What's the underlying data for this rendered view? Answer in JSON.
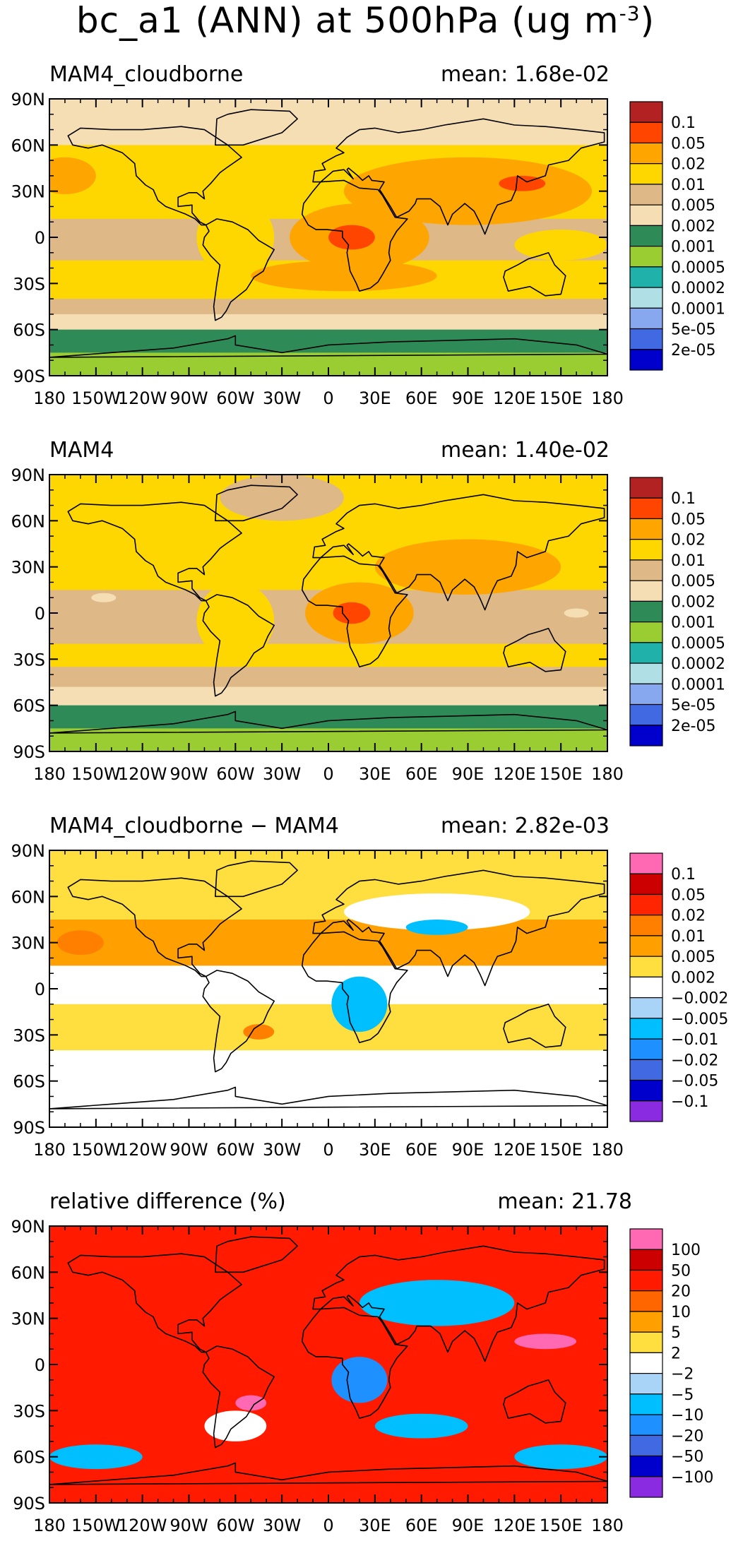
{
  "title": {
    "text": "bc_a1 (ANN) at 500hPa (ug m",
    "sup": "-3",
    "close": ")"
  },
  "chart_data": [
    {
      "type": "heatmap",
      "title": "MAM4_cloudborne",
      "mean": "mean: 1.68e-02",
      "yticks": [
        "90N",
        "60N",
        "30N",
        "0",
        "30S",
        "60S",
        "90S"
      ],
      "xticks": [
        "180",
        "150W",
        "120W",
        "90W",
        "60W",
        "30W",
        "0",
        "30E",
        "60E",
        "90E",
        "120E",
        "150E",
        "180"
      ],
      "xlim": [
        -180,
        180
      ],
      "ylim": [
        -90,
        90
      ],
      "levels": [
        "0.1",
        "0.05",
        "0.02",
        "0.01",
        "0.005",
        "0.002",
        "0.001",
        "0.0005",
        "0.0002",
        "0.0001",
        "5e-05",
        "2e-05"
      ],
      "colors": [
        "#b22222",
        "#ff4500",
        "#ffa500",
        "#ffd700",
        "#deb887",
        "#f5deb3",
        "#2e8b57",
        "#9acd32",
        "#20b2aa",
        "#b0e0e6",
        "#87a8ef",
        "#4169e1",
        "#0000cd"
      ],
      "bands": [
        {
          "lat": [
            60,
            90
          ],
          "c": 5
        },
        {
          "lat": [
            40,
            60
          ],
          "c": 3
        },
        {
          "lat": [
            12,
            40
          ],
          "c": 3
        },
        {
          "lat": [
            -15,
            12
          ],
          "c": 4
        },
        {
          "lat": [
            -30,
            -15
          ],
          "c": 3
        },
        {
          "lat": [
            -40,
            -30
          ],
          "c": 3
        },
        {
          "lat": [
            -50,
            -40
          ],
          "c": 4
        },
        {
          "lat": [
            -60,
            -50
          ],
          "c": 5
        },
        {
          "lat": [
            -75,
            -60
          ],
          "c": 6
        },
        {
          "lat": [
            -90,
            -75
          ],
          "c": 7
        }
      ],
      "blobs": [
        {
          "lon": 90,
          "lat": 30,
          "rx": 80,
          "ry": 22,
          "c": 2
        },
        {
          "lon": 20,
          "lat": 0,
          "rx": 45,
          "ry": 22,
          "c": 2
        },
        {
          "lon": 10,
          "lat": -25,
          "rx": 60,
          "ry": 10,
          "c": 2
        },
        {
          "lon": -170,
          "lat": 40,
          "rx": 20,
          "ry": 12,
          "c": 2
        },
        {
          "lon": 125,
          "lat": 35,
          "rx": 15,
          "ry": 5,
          "c": 1
        },
        {
          "lon": 15,
          "lat": 0,
          "rx": 15,
          "ry": 8,
          "c": 1
        },
        {
          "lon": -60,
          "lat": 0,
          "rx": 25,
          "ry": 25,
          "c": 3
        },
        {
          "lon": -100,
          "lat": 25,
          "rx": 30,
          "ry": 8,
          "c": 3
        },
        {
          "lon": 150,
          "lat": -5,
          "rx": 30,
          "ry": 10,
          "c": 3
        }
      ]
    },
    {
      "type": "heatmap",
      "title": "MAM4",
      "mean": "mean: 1.40e-02",
      "yticks": [
        "90N",
        "60N",
        "30N",
        "0",
        "30S",
        "60S",
        "90S"
      ],
      "xticks": [
        "180",
        "150W",
        "120W",
        "90W",
        "60W",
        "30W",
        "0",
        "30E",
        "60E",
        "90E",
        "120E",
        "150E",
        "180"
      ],
      "xlim": [
        -180,
        180
      ],
      "ylim": [
        -90,
        90
      ],
      "levels": [
        "0.1",
        "0.05",
        "0.02",
        "0.01",
        "0.005",
        "0.002",
        "0.001",
        "0.0005",
        "0.0002",
        "0.0001",
        "5e-05",
        "2e-05"
      ],
      "colors": [
        "#b22222",
        "#ff4500",
        "#ffa500",
        "#ffd700",
        "#deb887",
        "#f5deb3",
        "#2e8b57",
        "#9acd32",
        "#20b2aa",
        "#b0e0e6",
        "#87a8ef",
        "#4169e1",
        "#0000cd"
      ],
      "bands": [
        {
          "lat": [
            60,
            90
          ],
          "c": 3
        },
        {
          "lat": [
            40,
            60
          ],
          "c": 3
        },
        {
          "lat": [
            15,
            40
          ],
          "c": 3
        },
        {
          "lat": [
            -20,
            15
          ],
          "c": 4
        },
        {
          "lat": [
            -35,
            -20
          ],
          "c": 3
        },
        {
          "lat": [
            -48,
            -35
          ],
          "c": 4
        },
        {
          "lat": [
            -60,
            -48
          ],
          "c": 5
        },
        {
          "lat": [
            -75,
            -60
          ],
          "c": 6
        },
        {
          "lat": [
            -90,
            -75
          ],
          "c": 7
        }
      ],
      "blobs": [
        {
          "lon": -30,
          "lat": 75,
          "rx": 40,
          "ry": 15,
          "c": 4
        },
        {
          "lon": 90,
          "lat": 30,
          "rx": 60,
          "ry": 18,
          "c": 2
        },
        {
          "lon": 20,
          "lat": 0,
          "rx": 35,
          "ry": 20,
          "c": 2
        },
        {
          "lon": 15,
          "lat": 0,
          "rx": 12,
          "ry": 7,
          "c": 1
        },
        {
          "lon": -60,
          "lat": -5,
          "rx": 25,
          "ry": 25,
          "c": 3
        },
        {
          "lon": -145,
          "lat": 10,
          "rx": 8,
          "ry": 3,
          "c": 5
        },
        {
          "lon": 160,
          "lat": 0,
          "rx": 8,
          "ry": 3,
          "c": 5
        }
      ]
    },
    {
      "type": "heatmap",
      "title": "MAM4_cloudborne − MAM4",
      "mean": "mean: 2.82e-03",
      "yticks": [
        "90N",
        "60N",
        "30N",
        "0",
        "30S",
        "60S",
        "90S"
      ],
      "xticks": [
        "180",
        "150W",
        "120W",
        "90W",
        "60W",
        "30W",
        "0",
        "30E",
        "60E",
        "90E",
        "120E",
        "150E",
        "180"
      ],
      "xlim": [
        -180,
        180
      ],
      "ylim": [
        -90,
        90
      ],
      "levels": [
        "0.1",
        "0.05",
        "0.02",
        "0.01",
        "0.005",
        "0.002",
        "−0.002",
        "−0.005",
        "−0.01",
        "−0.02",
        "−0.05",
        "−0.1"
      ],
      "colors": [
        "#ff69b4",
        "#cd0000",
        "#ff2500",
        "#ff7f00",
        "#ffa000",
        "#ffdf3f",
        "#ffffff",
        "#aad4f7",
        "#00bfff",
        "#1e90ff",
        "#4169e1",
        "#0000cd",
        "#8a2be2"
      ],
      "bands": [
        {
          "lat": [
            45,
            90
          ],
          "c": 5
        },
        {
          "lat": [
            15,
            45
          ],
          "c": 4
        },
        {
          "lat": [
            -10,
            15
          ],
          "c": 6
        },
        {
          "lat": [
            -40,
            -10
          ],
          "c": 5
        },
        {
          "lat": [
            -90,
            -40
          ],
          "c": 6
        }
      ],
      "blobs": [
        {
          "lon": 70,
          "lat": 50,
          "rx": 60,
          "ry": 12,
          "c": 6
        },
        {
          "lon": 20,
          "lat": -10,
          "rx": 18,
          "ry": 18,
          "c": 8
        },
        {
          "lon": -45,
          "lat": -28,
          "rx": 10,
          "ry": 5,
          "c": 3
        },
        {
          "lon": 70,
          "lat": 40,
          "rx": 20,
          "ry": 5,
          "c": 8
        },
        {
          "lon": -160,
          "lat": 30,
          "rx": 15,
          "ry": 8,
          "c": 3
        }
      ]
    },
    {
      "type": "heatmap",
      "title": "relative difference (%)",
      "mean": "mean: 21.78",
      "yticks": [
        "90N",
        "60N",
        "30N",
        "0",
        "30S",
        "60S",
        "90S"
      ],
      "xticks": [
        "180",
        "150W",
        "120W",
        "90W",
        "60W",
        "30W",
        "0",
        "30E",
        "60E",
        "90E",
        "120E",
        "150E",
        "180"
      ],
      "xlim": [
        -180,
        180
      ],
      "ylim": [
        -90,
        90
      ],
      "levels": [
        "100",
        "50",
        "20",
        "10",
        "5",
        "2",
        "−2",
        "−5",
        "−10",
        "−20",
        "−50",
        "−100"
      ],
      "colors": [
        "#ff69b4",
        "#cd0000",
        "#ff1a00",
        "#ff6600",
        "#ffa000",
        "#ffdf3f",
        "#ffffff",
        "#aad4f7",
        "#00bfff",
        "#1e90ff",
        "#4169e1",
        "#0000cd",
        "#8a2be2"
      ],
      "bands": [
        {
          "lat": [
            -90,
            90
          ],
          "c": 2
        }
      ],
      "blobs": [
        {
          "lon": 70,
          "lat": 40,
          "rx": 50,
          "ry": 15,
          "c": 8
        },
        {
          "lon": 20,
          "lat": -10,
          "rx": 18,
          "ry": 15,
          "c": 9
        },
        {
          "lon": 60,
          "lat": -40,
          "rx": 30,
          "ry": 8,
          "c": 8
        },
        {
          "lon": -150,
          "lat": -60,
          "rx": 30,
          "ry": 8,
          "c": 8
        },
        {
          "lon": 150,
          "lat": -60,
          "rx": 30,
          "ry": 8,
          "c": 8
        },
        {
          "lon": 140,
          "lat": 15,
          "rx": 20,
          "ry": 5,
          "c": 0
        },
        {
          "lon": -50,
          "lat": -25,
          "rx": 10,
          "ry": 5,
          "c": 0
        },
        {
          "lon": -60,
          "lat": -40,
          "rx": 20,
          "ry": 10,
          "c": 6
        }
      ]
    }
  ]
}
